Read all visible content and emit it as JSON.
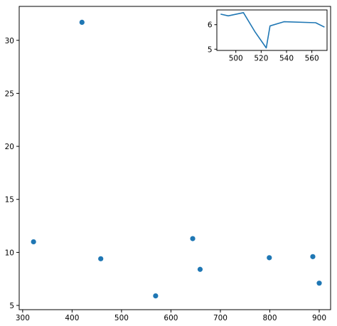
{
  "chart_data": [
    {
      "type": "scatter",
      "x": [
        322,
        420,
        458,
        569,
        644,
        659,
        799,
        887,
        900
      ],
      "y": [
        11.0,
        31.7,
        9.4,
        5.9,
        11.3,
        8.4,
        9.5,
        9.6,
        7.1
      ],
      "xlim": [
        293,
        923
      ],
      "ylim": [
        4.6,
        33.2
      ],
      "xticks": [
        300,
        400,
        500,
        600,
        700,
        800,
        900
      ],
      "yticks": [
        5,
        10,
        15,
        20,
        25,
        30
      ],
      "color": "#1f77b4",
      "grid": false
    },
    {
      "type": "line",
      "x": [
        488,
        494,
        506,
        515,
        524,
        527,
        538,
        563,
        570
      ],
      "y": [
        6.43,
        6.36,
        6.49,
        5.72,
        5.05,
        5.95,
        6.12,
        6.08,
        5.9
      ],
      "xlim": [
        485,
        572
      ],
      "ylim": [
        4.95,
        6.6
      ],
      "xticks": [
        500,
        520,
        540,
        560
      ],
      "yticks": [
        5,
        6
      ],
      "color": "#1f77b4",
      "grid": false
    }
  ]
}
